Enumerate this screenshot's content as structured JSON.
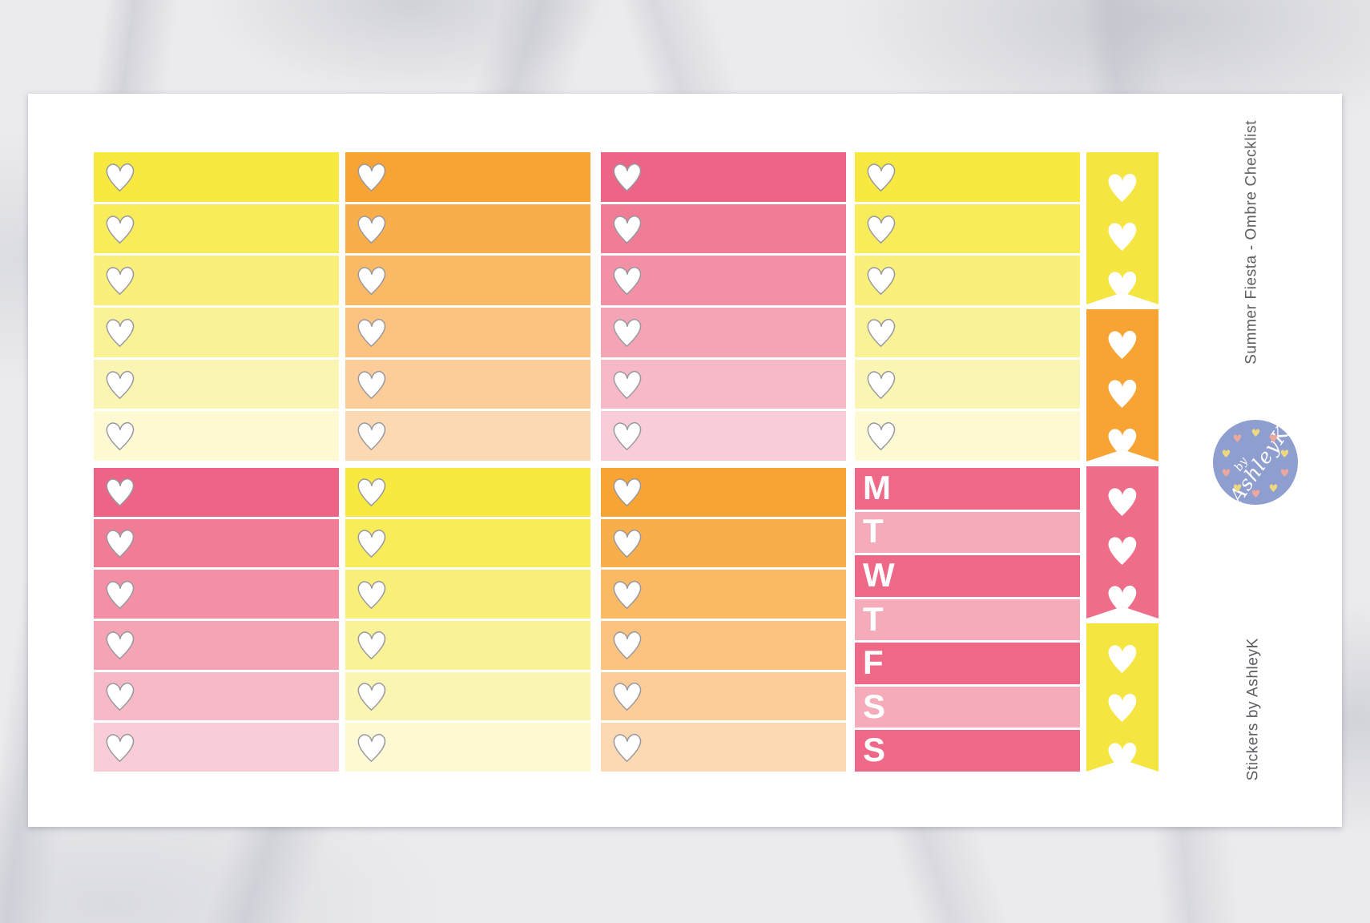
{
  "side_text": {
    "title": "Summer Fiesta - Ombre Checklist",
    "credit": "Stickers by AshleyK",
    "color": "#5d5e62"
  },
  "logo": {
    "text_small": "by",
    "text_large": "AshleyK",
    "circle_color": "#8e9ecf",
    "ring_heart_colors": [
      "#eed87f",
      "#eea79d"
    ],
    "text_color": "#ffffff"
  },
  "palettes": {
    "yellow": [
      "#f7e93f",
      "#f8ec5b",
      "#f9ef79",
      "#faf296",
      "#fbf5b4",
      "#fdf9d3"
    ],
    "orange": [
      "#f8a434",
      "#f9ae4c",
      "#fab965",
      "#fbc37f",
      "#fccd98",
      "#fdd9b3"
    ],
    "pink": [
      "#ee6487",
      "#f07c96",
      "#f390a5",
      "#f5a4b5",
      "#f7b9c7",
      "#f9cdd8"
    ]
  },
  "days": {
    "letters": [
      "M",
      "T",
      "W",
      "T",
      "F",
      "S",
      "S"
    ],
    "row_colors": [
      "#ed6987",
      "#f5abb9",
      "#ed6987",
      "#f5abb9",
      "#ed6987",
      "#f5abb9",
      "#ed6987"
    ],
    "letter_color": "#ffffff"
  },
  "sheet": {
    "background": "#ffffff",
    "heart_fill": "#ffffff",
    "heart_outline": "#98989e",
    "top_row_blocks": [
      {
        "type": "checklist",
        "palette": "yellow",
        "rows": 6
      },
      {
        "type": "checklist",
        "palette": "orange",
        "rows": 6
      },
      {
        "type": "checklist",
        "palette": "pink",
        "rows": 6
      },
      {
        "type": "checklist",
        "palette": "yellow",
        "rows": 6
      }
    ],
    "bottom_row_blocks": [
      {
        "type": "checklist",
        "palette": "pink",
        "rows": 6
      },
      {
        "type": "checklist",
        "palette": "yellow",
        "rows": 6
      },
      {
        "type": "checklist",
        "palette": "orange",
        "rows": 6
      },
      {
        "type": "days",
        "rows": 7
      }
    ],
    "flags": [
      {
        "color_name": "yellow",
        "color": "#f5e540",
        "hearts": 3
      },
      {
        "color_name": "orange",
        "color": "#f8a434",
        "hearts": 3
      },
      {
        "color_name": "pink",
        "color": "#ee6d89",
        "hearts": 3
      },
      {
        "color_name": "yellow",
        "color": "#f5e540",
        "hearts": 3
      }
    ]
  }
}
